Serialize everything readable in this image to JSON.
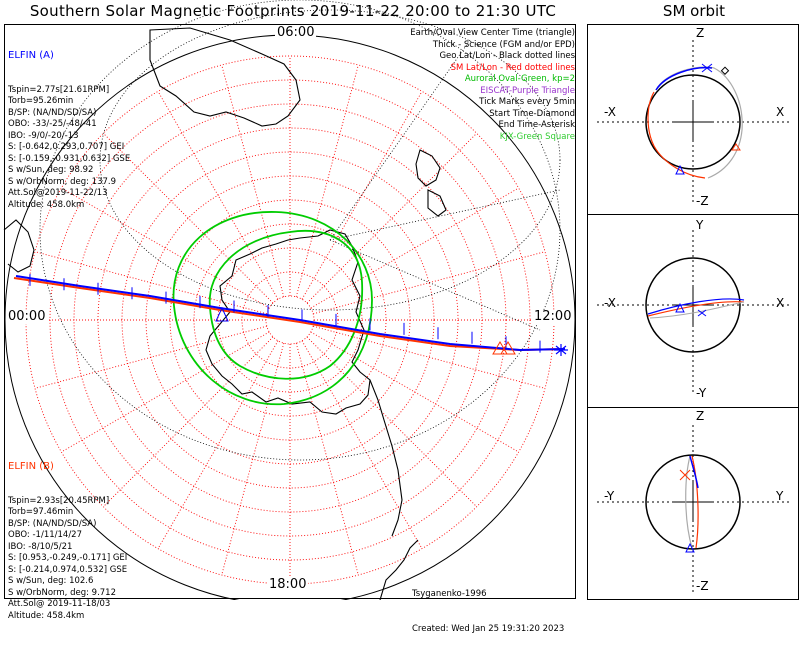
{
  "title": "Southern Solar Magnetic Footprints 2019-11-22 20:00 to 21:30 UTC",
  "sm_title": "SM orbit",
  "colors": {
    "probe_a": "#0000ff",
    "probe_b": "#ff3300",
    "grid": "#ff0000",
    "auroral_oval": "#00cc00",
    "coast": "#000000",
    "eiscat": "#9933cc",
    "kjx": "#33cc33"
  },
  "mlt_labels": {
    "top": "06:00",
    "left": "00:00",
    "right": "12:00",
    "bottom": "18:00"
  },
  "probe_a": {
    "name": "ELFIN (A)",
    "lines": [
      "Tspin=2.77s[21.61RPM]",
      "Torb=95.26min",
      "B/SP: (NA/ND/SD/SA)",
      "OBO: -33/-25/-48/-41",
      "IBO: -9/0/-20/-13",
      "S: [-0.642,0.293,0.707] GEI",
      "S: [-0.159,-0.931,0.632] GSE",
      "S w/Sun, deg: 98.92",
      "S w/OrbNorm, deg: 137.9",
      "Att.Sol@2019-11-22/13",
      "Altitude: 458.0km"
    ]
  },
  "probe_b": {
    "name": "ELFIN (B)",
    "lines": [
      "Tspin=2.93s[20.45RPM]",
      "Torb=97.46min",
      "B/SP: (NA/ND/SD/SA)",
      "OBO: -1/11/14/27",
      "IBO: -8/10/5/21",
      "S: [0.953,-0.249,-0.171] GEI",
      "S: [-0.214,0.974,0.532] GSE",
      "S w/Sun, deg: 102.6",
      "S w/OrbNorm, deg: 9.712",
      "Att.Sol@ 2019-11-18/03",
      "Altitude: 458.4km"
    ]
  },
  "legend": [
    {
      "text": "Earth/Oval View Center Time (triangle)",
      "color": "#000000"
    },
    {
      "text": "Thick - Science (FGM and/or EPD)",
      "color": "#000000"
    },
    {
      "text": "Geo Lat/Lon - Black dotted lines",
      "color": "#000000"
    },
    {
      "text": "SM Lat/Lon - Red dotted lines",
      "color": "#ff0000"
    },
    {
      "text": "Auroral Oval-Green, kp=2",
      "color": "#00bb00"
    },
    {
      "text": "EISCAT-Purple Triangle",
      "color": "#9933cc"
    },
    {
      "text": "Tick Marks every 5min",
      "color": "#000000"
    },
    {
      "text": "Start Time-Diamond",
      "color": "#000000"
    },
    {
      "text": "End Time-Asterisk",
      "color": "#000000"
    },
    {
      "text": "KJX-Green Square",
      "color": "#33cc33"
    }
  ],
  "footer": {
    "model": "Tsyganenko-1996",
    "created": "Created: Wed Jan 25 19:31:20 2023"
  },
  "sm_panels": [
    {
      "top": "Z",
      "bottom": "-Z",
      "left": "-X",
      "right": "X"
    },
    {
      "top": "Y",
      "bottom": "-Y",
      "left": "-X",
      "right": "X"
    },
    {
      "top": "Z",
      "bottom": "-Z",
      "left": "-Y",
      "right": "Y"
    }
  ]
}
